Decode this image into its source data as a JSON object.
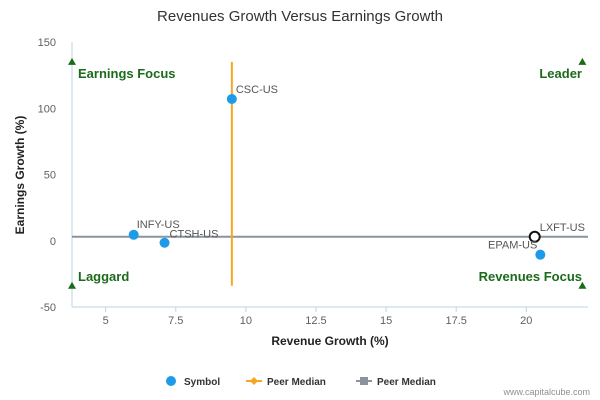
{
  "chart_data": {
    "type": "scatter",
    "title": "Revenues Growth Versus Earnings Growth",
    "xlabel": "Revenue Growth (%)",
    "ylabel": "Earnings Growth (%)",
    "xlim": [
      3.8,
      22.2
    ],
    "ylim": [
      -50,
      150
    ],
    "xticks": [
      "5",
      "7.5",
      "10",
      "12.5",
      "15",
      "17.5",
      "20"
    ],
    "xtick_values": [
      5,
      7.5,
      10,
      12.5,
      15,
      17.5,
      20
    ],
    "yticks": [
      "150",
      "100",
      "50",
      "0",
      "-50"
    ],
    "ytick_values": [
      150,
      100,
      50,
      0,
      -50
    ],
    "grid": false,
    "series": [
      {
        "name": "Symbol",
        "points": [
          {
            "label": "CSC-US",
            "x": 9.5,
            "y": 107
          },
          {
            "label": "INFY-US",
            "x": 6.0,
            "y": 4.5
          },
          {
            "label": "CTSH-US",
            "x": 7.1,
            "y": -1.5
          },
          {
            "label": "EPAM-US",
            "x": 20.5,
            "y": -10.5
          },
          {
            "label": "LXFT-US",
            "x": 20.3,
            "y": 3.0,
            "highlight": true
          }
        ]
      },
      {
        "name": "Peer Median",
        "orientation": "vertical",
        "x": 9.5,
        "y_range": [
          -34,
          135
        ],
        "color": "#f5a623"
      },
      {
        "name": "Peer Median",
        "orientation": "horizontal",
        "y": 3,
        "x_range": [
          3.8,
          22.2
        ],
        "color": "#8c93a0"
      }
    ],
    "quadrants": {
      "top_left": "Earnings Focus",
      "top_right": "Leader",
      "bottom_left": "Laggard",
      "bottom_right": "Revenues Focus"
    },
    "corner_marker_values": {
      "top_y": 135,
      "bottom_y": -34,
      "left_x": 3.8,
      "right_x": 22.0
    },
    "legend_placement": "bottom-center",
    "colors": {
      "point": "#1e9be8",
      "peer_median_vertical": "#f5a623",
      "peer_median_horizontal": "#8c93a0",
      "quadrant_label": "#1b6b1b",
      "axis": "#b7d7e0"
    }
  },
  "legend": [
    {
      "label": "Symbol",
      "icon": "circle-marker"
    },
    {
      "label": "Peer Median",
      "icon": "diamond-line-marker"
    },
    {
      "label": "Peer Median",
      "icon": "square-line-marker"
    }
  ],
  "credit": "www.capitalcube.com"
}
